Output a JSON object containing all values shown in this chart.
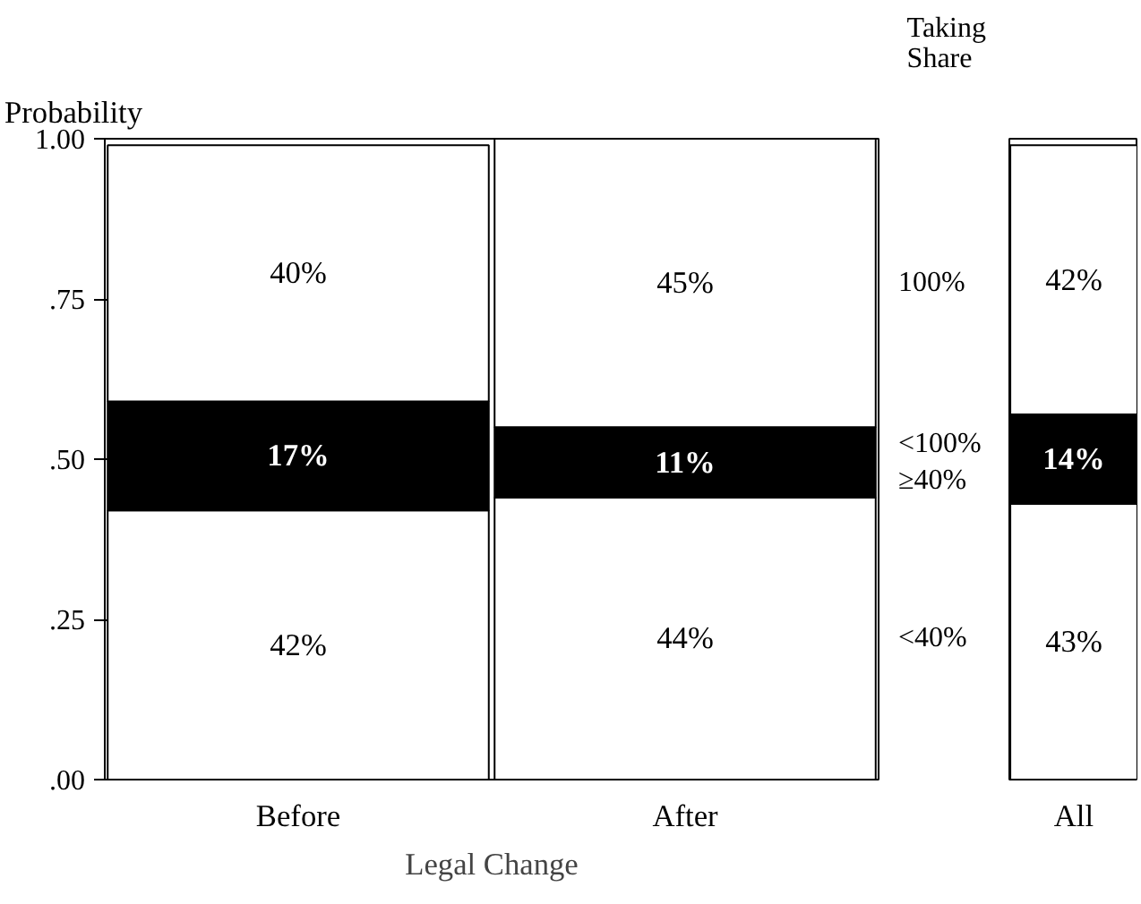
{
  "chart_data": [
    {
      "type": "bar",
      "stacked": true,
      "categories": [
        "Before",
        "After"
      ],
      "xlabel": "Legal Change",
      "ylabel": "Probability",
      "legend_title": "Taking Share",
      "legend": "right",
      "ylim": [
        0,
        1
      ],
      "yticks": [
        {
          "value": 0,
          "label": ".00"
        },
        {
          "value": 0.25,
          "label": ".25"
        },
        {
          "value": 0.5,
          "label": ".50"
        },
        {
          "value": 0.75,
          "label": ".75"
        },
        {
          "value": 1,
          "label": "1.00"
        }
      ],
      "series": [
        {
          "name": "<40%",
          "color": "#ffffff",
          "values": [
            0.42,
            0.44
          ],
          "value_labels": [
            "42%",
            "44%"
          ]
        },
        {
          "name": "<100% ≥40%",
          "color": "#000000",
          "values": [
            0.17,
            0.11
          ],
          "value_labels": [
            "17%",
            "11%"
          ]
        },
        {
          "name": "100%",
          "color": "#ffffff",
          "values": [
            0.4,
            0.45
          ],
          "value_labels": [
            "40%",
            "45%"
          ]
        }
      ]
    },
    {
      "type": "bar",
      "stacked": true,
      "categories": [
        "All"
      ],
      "tick_labels": "x",
      "ylim": [
        0,
        1
      ],
      "series": [
        {
          "color": "#ffffff",
          "values": [
            0.43
          ],
          "value_labels": [
            "43%"
          ]
        },
        {
          "color": "#000000",
          "values": [
            0.14
          ],
          "value_labels": [
            "14%"
          ]
        },
        {
          "color": "#ffffff",
          "values": [
            0.42
          ],
          "value_labels": [
            "42%"
          ]
        }
      ]
    }
  ]
}
